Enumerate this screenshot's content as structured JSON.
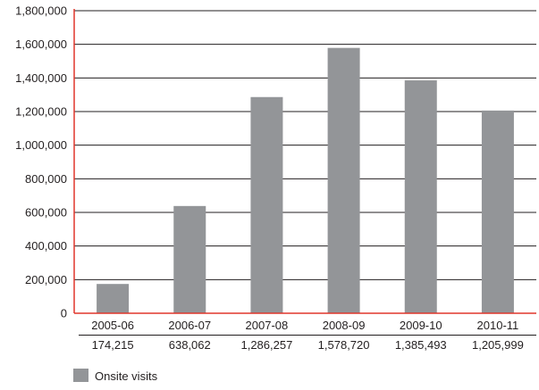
{
  "chart_data": {
    "type": "bar",
    "categories": [
      "2005-06",
      "2006-07",
      "2007-08",
      "2008-09",
      "2009-10",
      "2010-11"
    ],
    "category_value_labels": [
      "174,215",
      "638,062",
      "1,286,257",
      "1,578,720",
      "1,385,493",
      "1,205,999"
    ],
    "series": [
      {
        "name": "Onsite visits",
        "values": [
          174215,
          638062,
          1286257,
          1578720,
          1385493,
          1205999
        ]
      }
    ],
    "ylim": [
      0,
      1800000
    ],
    "yticks": [
      0,
      200000,
      400000,
      600000,
      800000,
      1000000,
      1200000,
      1400000,
      1600000,
      1800000
    ],
    "ytick_labels": [
      "0",
      "200,000",
      "400,000",
      "600,000",
      "800,000",
      "1,000,000",
      "1,200,000",
      "1,400,000",
      "1,600,000",
      "1,800,000"
    ],
    "grid": "horizontal",
    "legend": "bottom-left",
    "colors": {
      "bar": "#939598",
      "axis": "#e0362c",
      "grid": "#231f20",
      "text": "#231f20"
    }
  }
}
